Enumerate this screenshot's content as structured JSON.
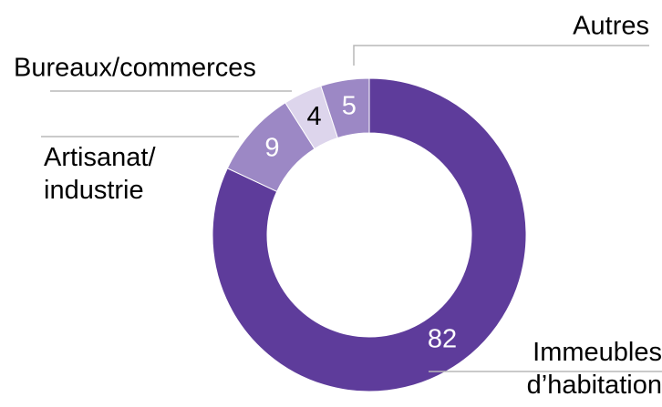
{
  "chart_data": {
    "type": "donut",
    "categories": [
      "Immeubles\nd’habitation",
      "Artisanat/\nindustrie",
      "Bureaux/commerces",
      "Autres"
    ],
    "values": [
      82,
      9,
      4,
      5
    ],
    "colors": [
      "#5e3c9b",
      "#9c88c5",
      "#ddd5ec",
      "#9c88c5"
    ],
    "label_colors": [
      "#ffffff",
      "#ffffff",
      "#000000",
      "#ffffff"
    ]
  }
}
